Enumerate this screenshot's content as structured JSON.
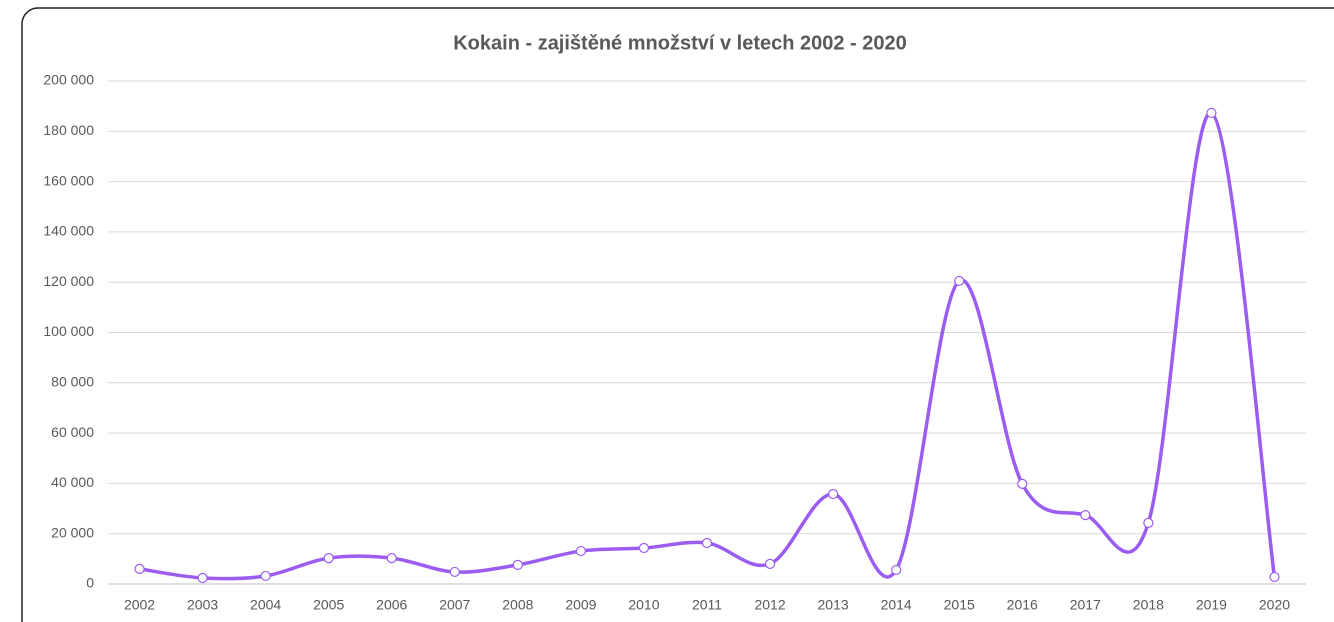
{
  "chart_data": {
    "type": "line",
    "title": "Kokain - zajištěné množství v letech 2002 - 2020",
    "categories": [
      "2002",
      "2003",
      "2004",
      "2005",
      "2006",
      "2007",
      "2008",
      "2009",
      "2010",
      "2011",
      "2012",
      "2013",
      "2014",
      "2015",
      "2016",
      "2017",
      "2018",
      "2019",
      "2020"
    ],
    "series": [
      {
        "color": "#9b5cf0",
        "values": [
          6000,
          2400,
          3200,
          10300,
          10300,
          4800,
          7600,
          13100,
          14300,
          16300,
          8000,
          35800,
          5600,
          120500,
          39800,
          27400,
          24300,
          187300,
          2800
        ]
      }
    ],
    "smooth": true,
    "markers": true,
    "ylim": [
      0,
      200000
    ],
    "yticks": [
      0,
      {
        "value": 20000,
        "label": "20 000"
      },
      {
        "value": 40000,
        "label": "40 000"
      },
      {
        "value": 60000,
        "label": "60 000"
      },
      {
        "value": 80000,
        "label": "80 000"
      },
      {
        "value": 100000,
        "label": "100 000"
      },
      {
        "value": 120000,
        "label": "120 000"
      },
      {
        "value": 140000,
        "label": "140 000"
      },
      {
        "value": 160000,
        "label": "160 000"
      },
      {
        "value": 180000,
        "label": "180 000"
      },
      {
        "value": 200000,
        "label": "200 000"
      }
    ],
    "grid": true
  }
}
